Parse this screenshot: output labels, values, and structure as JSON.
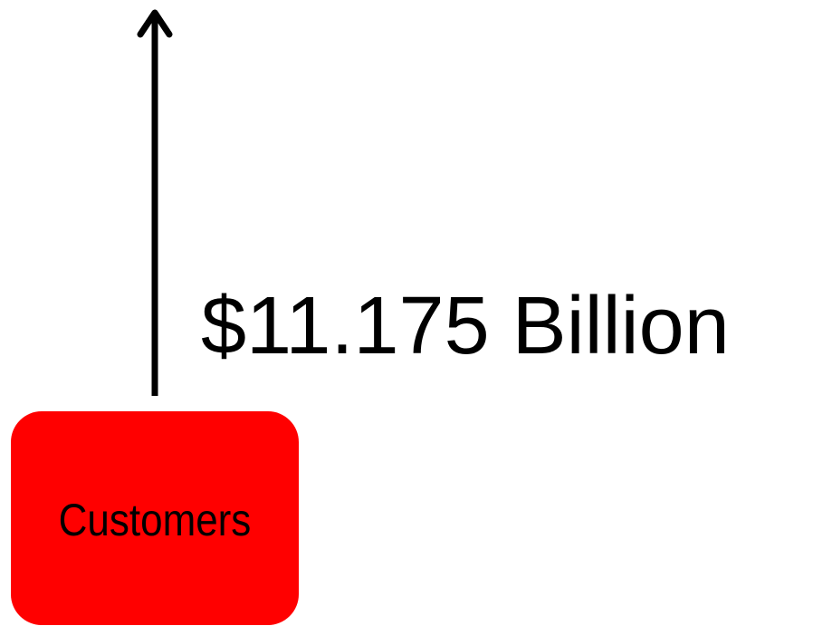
{
  "nodes": [
    {
      "label": "Customers"
    }
  ],
  "annotation": "$11.175 Billion"
}
